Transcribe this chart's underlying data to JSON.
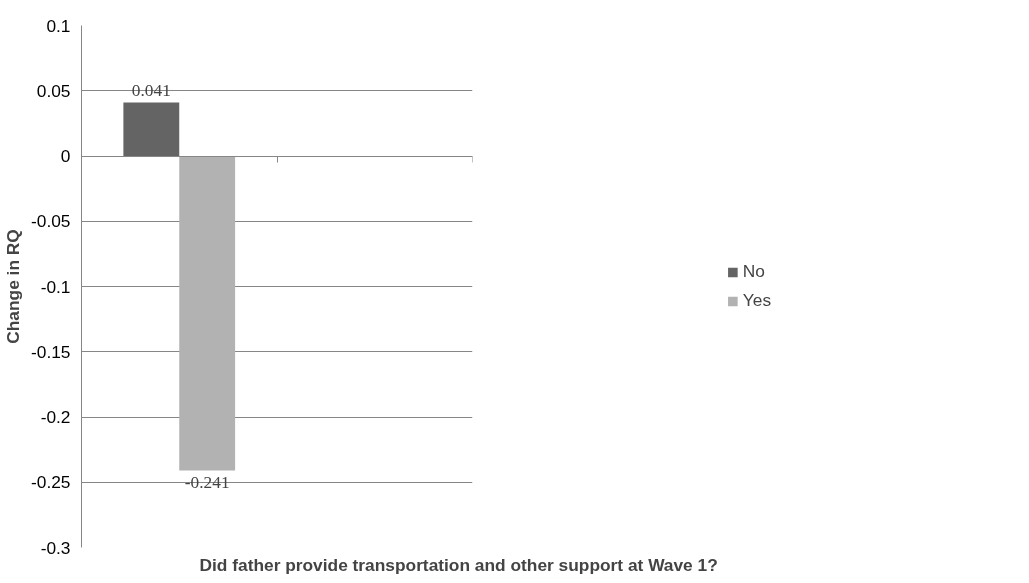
{
  "chart_data": {
    "type": "bar",
    "xlabel": "Did father provide transportation and other support at Wave 1?",
    "ylabel": "Change in RQ",
    "categories": [
      null,
      null
    ],
    "series": [
      {
        "name": "No",
        "color": "#646464",
        "values": [
          0.041,
          null
        ]
      },
      {
        "name": "Yes",
        "color": "#b2b2b2",
        "values": [
          -0.241,
          null
        ]
      }
    ],
    "ylim": [
      -0.3,
      0.1
    ],
    "yticks": [
      {
        "value": 0.1,
        "label": "0.1"
      },
      {
        "value": 0.05,
        "label": "0.05"
      },
      {
        "value": 0,
        "label": "0"
      },
      {
        "value": -0.05,
        "label": "-0.05"
      },
      {
        "value": -0.1,
        "label": "-0.1"
      },
      {
        "value": -0.15,
        "label": "-0.15"
      },
      {
        "value": -0.2,
        "label": "-0.2"
      },
      {
        "value": -0.25,
        "label": "-0.25"
      },
      {
        "value": -0.3,
        "label": "-0.3"
      }
    ],
    "grid": "y",
    "legend": "right",
    "data_labels": true,
    "tick_labels": "y"
  }
}
